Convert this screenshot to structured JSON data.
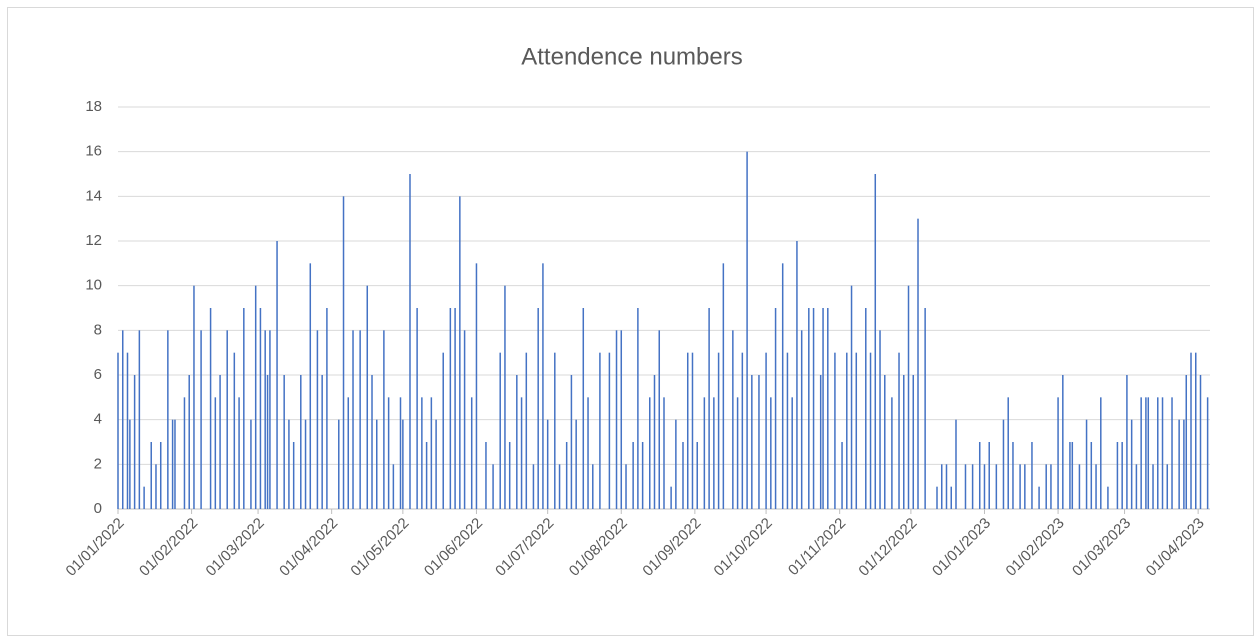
{
  "chart_data": {
    "type": "bar",
    "title": "Attendence numbers",
    "color": "#4472c4",
    "grid": true,
    "xlim": [
      "01/01/2022",
      "06/04/2023"
    ],
    "xticks": [
      "01/01/2022",
      "01/02/2022",
      "01/03/2022",
      "01/04/2022",
      "01/05/2022",
      "01/06/2022",
      "01/07/2022",
      "01/08/2022",
      "01/09/2022",
      "01/10/2022",
      "01/11/2022",
      "01/12/2022",
      "01/01/2023",
      "01/02/2023",
      "01/03/2023",
      "01/04/2023"
    ],
    "ylim": [
      0,
      18
    ],
    "yticks": [
      0,
      2,
      4,
      6,
      8,
      10,
      12,
      14,
      16,
      18
    ],
    "x": [
      "01/01/2022",
      "03/01/2022",
      "05/01/2022",
      "06/01/2022",
      "08/01/2022",
      "10/01/2022",
      "12/01/2022",
      "15/01/2022",
      "17/01/2022",
      "19/01/2022",
      "22/01/2022",
      "24/01/2022",
      "25/01/2022",
      "29/01/2022",
      "31/01/2022",
      "02/02/2022",
      "05/02/2022",
      "09/02/2022",
      "11/02/2022",
      "13/02/2022",
      "16/02/2022",
      "19/02/2022",
      "21/02/2022",
      "23/02/2022",
      "26/02/2022",
      "28/02/2022",
      "02/03/2022",
      "04/03/2022",
      "05/03/2022",
      "06/03/2022",
      "09/03/2022",
      "12/03/2022",
      "14/03/2022",
      "16/03/2022",
      "19/03/2022",
      "21/03/2022",
      "23/03/2022",
      "26/03/2022",
      "28/03/2022",
      "30/03/2022",
      "04/04/2022",
      "06/04/2022",
      "08/04/2022",
      "10/04/2022",
      "13/04/2022",
      "16/04/2022",
      "18/04/2022",
      "20/04/2022",
      "23/04/2022",
      "25/04/2022",
      "27/04/2022",
      "30/04/2022",
      "01/05/2022",
      "04/05/2022",
      "07/05/2022",
      "09/05/2022",
      "11/05/2022",
      "13/05/2022",
      "15/05/2022",
      "18/05/2022",
      "21/05/2022",
      "23/05/2022",
      "25/05/2022",
      "27/05/2022",
      "30/05/2022",
      "01/06/2022",
      "05/06/2022",
      "08/06/2022",
      "11/06/2022",
      "13/06/2022",
      "15/06/2022",
      "18/06/2022",
      "20/06/2022",
      "22/06/2022",
      "25/06/2022",
      "27/06/2022",
      "29/06/2022",
      "01/07/2022",
      "04/07/2022",
      "06/07/2022",
      "09/07/2022",
      "11/07/2022",
      "13/07/2022",
      "16/07/2022",
      "18/07/2022",
      "20/07/2022",
      "23/07/2022",
      "27/07/2022",
      "30/07/2022",
      "01/08/2022",
      "03/08/2022",
      "06/08/2022",
      "08/08/2022",
      "10/08/2022",
      "13/08/2022",
      "15/08/2022",
      "17/08/2022",
      "19/08/2022",
      "22/08/2022",
      "24/08/2022",
      "27/08/2022",
      "29/08/2022",
      "31/08/2022",
      "02/09/2022",
      "05/09/2022",
      "07/09/2022",
      "09/09/2022",
      "11/09/2022",
      "13/09/2022",
      "17/09/2022",
      "19/09/2022",
      "21/09/2022",
      "23/09/2022",
      "25/09/2022",
      "28/09/2022",
      "01/10/2022",
      "03/10/2022",
      "05/10/2022",
      "08/10/2022",
      "10/10/2022",
      "12/10/2022",
      "14/10/2022",
      "16/10/2022",
      "19/10/2022",
      "21/10/2022",
      "24/10/2022",
      "25/10/2022",
      "27/10/2022",
      "30/10/2022",
      "02/11/2022",
      "04/11/2022",
      "06/11/2022",
      "08/11/2022",
      "12/11/2022",
      "14/11/2022",
      "16/11/2022",
      "18/11/2022",
      "20/11/2022",
      "23/11/2022",
      "26/11/2022",
      "28/11/2022",
      "30/11/2022",
      "02/12/2022",
      "04/12/2022",
      "07/12/2022",
      "12/12/2022",
      "14/12/2022",
      "16/12/2022",
      "18/12/2022",
      "20/12/2022",
      "24/12/2022",
      "27/12/2022",
      "30/12/2022",
      "01/01/2023",
      "03/01/2023",
      "06/01/2023",
      "09/01/2023",
      "11/01/2023",
      "13/01/2023",
      "16/01/2023",
      "18/01/2023",
      "21/01/2023",
      "24/01/2023",
      "27/01/2023",
      "29/01/2023",
      "01/02/2023",
      "03/02/2023",
      "06/02/2023",
      "07/02/2023",
      "10/02/2023",
      "13/02/2023",
      "15/02/2023",
      "17/02/2023",
      "19/02/2023",
      "22/02/2023",
      "26/02/2023",
      "28/02/2023",
      "02/03/2023",
      "04/03/2023",
      "06/03/2023",
      "08/03/2023",
      "10/03/2023",
      "11/03/2023",
      "13/03/2023",
      "15/03/2023",
      "17/03/2023",
      "19/03/2023",
      "21/03/2023",
      "24/03/2023",
      "26/03/2023",
      "27/03/2023",
      "29/03/2023",
      "31/03/2023",
      "02/04/2023",
      "05/04/2023"
    ],
    "values": [
      7,
      8,
      7,
      4,
      6,
      8,
      1,
      3,
      2,
      3,
      8,
      4,
      4,
      5,
      6,
      10,
      8,
      9,
      5,
      6,
      8,
      7,
      5,
      9,
      4,
      10,
      9,
      8,
      6,
      8,
      12,
      6,
      4,
      3,
      6,
      4,
      11,
      8,
      6,
      9,
      4,
      14,
      5,
      8,
      8,
      10,
      6,
      4,
      8,
      5,
      2,
      5,
      4,
      15,
      9,
      5,
      3,
      5,
      4,
      7,
      9,
      9,
      14,
      8,
      5,
      11,
      3,
      2,
      7,
      10,
      3,
      6,
      5,
      7,
      2,
      9,
      11,
      4,
      7,
      2,
      3,
      6,
      4,
      9,
      5,
      2,
      7,
      7,
      8,
      8,
      2,
      3,
      9,
      3,
      5,
      6,
      8,
      5,
      1,
      4,
      3,
      7,
      7,
      3,
      5,
      9,
      5,
      7,
      11,
      8,
      5,
      7,
      16,
      6,
      6,
      7,
      5,
      9,
      11,
      7,
      5,
      12,
      8,
      9,
      9,
      6,
      9,
      9,
      7,
      3,
      7,
      10,
      7,
      9,
      7,
      15,
      8,
      6,
      5,
      7,
      6,
      10,
      6,
      13,
      9,
      1,
      2,
      2,
      1,
      4,
      2,
      2,
      3,
      2,
      3,
      2,
      4,
      5,
      3,
      2,
      2,
      3,
      1,
      2,
      2,
      5,
      6,
      3,
      3,
      2,
      4,
      3,
      2,
      5,
      1,
      3,
      3,
      6,
      4,
      2,
      5,
      5,
      5,
      2,
      5,
      5,
      2,
      5,
      4,
      4,
      6,
      7,
      7,
      6,
      5
    ]
  }
}
